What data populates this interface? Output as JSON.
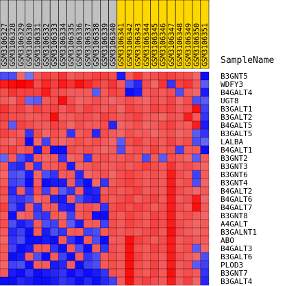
{
  "chart_data": {
    "type": "heatmap",
    "column_axis_title": "SampleName",
    "columns": [
      {
        "name": "GSM3106327",
        "group": "control"
      },
      {
        "name": "GSM3106328",
        "group": "control"
      },
      {
        "name": "GSM3106329",
        "group": "control"
      },
      {
        "name": "GSM3106330",
        "group": "control"
      },
      {
        "name": "GSM3106331",
        "group": "control"
      },
      {
        "name": "GSM3106332",
        "group": "control"
      },
      {
        "name": "GSM3106333",
        "group": "control"
      },
      {
        "name": "GSM3106334",
        "group": "control"
      },
      {
        "name": "GSM3106335",
        "group": "control"
      },
      {
        "name": "GSM3106336",
        "group": "control"
      },
      {
        "name": "GSM3106337",
        "group": "control"
      },
      {
        "name": "GSM3106338",
        "group": "control"
      },
      {
        "name": "GSM3106339",
        "group": "control"
      },
      {
        "name": "GSM3106340",
        "group": "control"
      },
      {
        "name": "GSM3106341",
        "group": "treated"
      },
      {
        "name": "GSM3106342",
        "group": "treated"
      },
      {
        "name": "GSM3106343",
        "group": "treated"
      },
      {
        "name": "GSM3106344",
        "group": "treated"
      },
      {
        "name": "GSM3106345",
        "group": "treated"
      },
      {
        "name": "GSM3106346",
        "group": "treated"
      },
      {
        "name": "GSM3106347",
        "group": "treated"
      },
      {
        "name": "GSM3106348",
        "group": "treated"
      },
      {
        "name": "GSM3106349",
        "group": "treated"
      },
      {
        "name": "GSM3106350",
        "group": "treated"
      },
      {
        "name": "GSM3106351",
        "group": "treated"
      }
    ],
    "rows": [
      "B3GNT5",
      "WDFY3",
      "B4GALT4",
      "UGT8",
      "B3GALT1",
      "B3GALT2",
      "B4GALT5",
      "B3GALT5",
      "LALBA",
      "B4GALT1",
      "B3GNT2",
      "B3GNT3",
      "B3GNT6",
      "B3GNT4",
      "B4GALT2",
      "B4GALT6",
      "B4GALT7",
      "B3GNT8",
      "A4GALT",
      "B3GALNT1",
      "ABO",
      "B4GALT3",
      "B3GALT6",
      "PLOD3",
      "B3GNT7",
      "B3GALT4"
    ],
    "values": [
      [
        -0.4,
        -0.4,
        0.2,
        -0.1,
        0.3,
        0.5,
        0.4,
        0.6,
        0.3,
        0.4,
        0.4,
        0.5,
        0.5,
        0.4,
        -0.8,
        0.3,
        0.6,
        0.3,
        0.4,
        0.5,
        0.5,
        0.4,
        0.4,
        0.2,
        -0.9
      ],
      [
        0.8,
        0.9,
        1.0,
        0.9,
        0.4,
        0.7,
        0.5,
        0.8,
        0.6,
        0.9,
        0.7,
        0.5,
        0.4,
        0.6,
        0.3,
        -0.4,
        -0.7,
        0.4,
        0.2,
        0.6,
        -0.6,
        0.5,
        0.6,
        0.3,
        -0.3
      ],
      [
        0.4,
        0.6,
        0.5,
        0.5,
        0.5,
        0.8,
        0.4,
        0.4,
        0.3,
        0.3,
        0.3,
        -0.3,
        0.3,
        0.5,
        0.4,
        -0.9,
        -0.8,
        0.3,
        0.4,
        0.3,
        0.4,
        -0.4,
        0.3,
        0.2,
        -0.8
      ],
      [
        0.3,
        0.2,
        0.5,
        -0.2,
        -0.3,
        0.3,
        0.4,
        0.9,
        0.4,
        0.2,
        0.3,
        0.4,
        0.3,
        0.2,
        0.3,
        0.4,
        0.3,
        0.2,
        0.4,
        0.3,
        0.5,
        0.2,
        0.4,
        -0.4,
        -0.3
      ],
      [
        0.6,
        0.4,
        0.5,
        0.3,
        0.5,
        0.4,
        0.5,
        0.3,
        0.5,
        0.3,
        0.5,
        0.4,
        0.3,
        0.4,
        0.2,
        0.5,
        0.4,
        0.3,
        0.5,
        0.4,
        0.5,
        0.3,
        0.4,
        0.9,
        -0.5
      ],
      [
        0.5,
        0.4,
        0.4,
        0.3,
        0.3,
        0.4,
        0.9,
        0.3,
        0.3,
        0.4,
        0.4,
        0.3,
        0.5,
        0.4,
        0.3,
        0.4,
        0.5,
        0.3,
        0.3,
        0.2,
        0.4,
        0.3,
        0.8,
        0.3,
        -0.6
      ],
      [
        0.4,
        -0.3,
        0.5,
        0.4,
        0.3,
        0.3,
        0.5,
        0.4,
        0.2,
        0.4,
        0.3,
        0.3,
        0.4,
        -0.7,
        0.2,
        0.3,
        0.4,
        0.2,
        0.3,
        0.4,
        0.5,
        0.3,
        0.3,
        0.8,
        -0.8
      ],
      [
        0.5,
        0.4,
        0.3,
        -0.6,
        0.4,
        0.2,
        0.4,
        0.3,
        -0.6,
        0.3,
        0.4,
        -0.7,
        0.4,
        0.3,
        0.2,
        0.4,
        0.3,
        0.3,
        0.2,
        0.3,
        0.4,
        0.2,
        0.3,
        -0.3,
        -0.6
      ],
      [
        0.3,
        0.2,
        0.4,
        -0.9,
        0.2,
        -0.5,
        0.3,
        0.2,
        0.3,
        0.4,
        0.3,
        0.4,
        0.3,
        0.2,
        -0.3,
        0.4,
        0.5,
        0.3,
        0.4,
        0.3,
        0.5,
        0.3,
        0.4,
        -0.4,
        -0.2
      ],
      [
        0.4,
        0.5,
        0.3,
        0.4,
        -0.8,
        0.4,
        -0.9,
        -0.9,
        0.4,
        0.3,
        0.4,
        0.3,
        0.2,
        0.3,
        -0.4,
        0.3,
        0.4,
        0.3,
        0.5,
        0.3,
        0.4,
        -0.5,
        0.3,
        0.3,
        -0.9
      ],
      [
        -0.2,
        0.3,
        -0.4,
        -0.7,
        0.3,
        0.2,
        0.3,
        -0.6,
        0.2,
        0.3,
        -0.6,
        0.3,
        0.4,
        0.3,
        0.3,
        0.4,
        0.3,
        -0.4,
        0.3,
        -0.3,
        0.4,
        0.3,
        0.2,
        -0.3,
        0.3
      ],
      [
        0.3,
        -0.6,
        -0.7,
        0.3,
        -0.6,
        0.3,
        0.3,
        0.4,
        -0.8,
        0.2,
        0.3,
        0.4,
        0.3,
        0.3,
        0.4,
        0.3,
        0.4,
        0.5,
        0.4,
        0.3,
        0.6,
        0.3,
        0.4,
        0.3,
        0.2
      ],
      [
        0.2,
        -0.4,
        -0.3,
        -0.8,
        0.2,
        -0.4,
        -0.6,
        0.3,
        0.3,
        -0.7,
        0.2,
        0.3,
        0.4,
        0.2,
        0.4,
        0.5,
        0.4,
        0.3,
        0.4,
        0.3,
        0.8,
        0.4,
        0.3,
        -0.5,
        0.3
      ],
      [
        0.3,
        -0.5,
        -0.4,
        -0.9,
        0.3,
        -0.9,
        -0.8,
        -0.8,
        0.3,
        -0.6,
        -0.9,
        0.2,
        -0.6,
        0.3,
        0.4,
        0.5,
        0.4,
        0.3,
        0.4,
        0.3,
        0.8,
        0.3,
        0.4,
        -0.4,
        0.2
      ],
      [
        0.4,
        -0.7,
        0.3,
        -0.6,
        0.4,
        -0.5,
        0.3,
        -0.3,
        -0.6,
        0.3,
        -0.8,
        -0.7,
        0.3,
        0.4,
        0.3,
        0.4,
        0.5,
        0.3,
        0.4,
        0.3,
        0.8,
        0.4,
        0.3,
        0.2,
        0.3
      ],
      [
        0.3,
        -0.5,
        -0.6,
        -0.4,
        0.2,
        0.3,
        -0.7,
        -0.8,
        0.3,
        -0.4,
        -0.7,
        -0.8,
        0.4,
        0.3,
        0.4,
        0.5,
        0.3,
        0.4,
        0.5,
        0.3,
        0.8,
        0.3,
        0.4,
        0.8,
        0.2
      ],
      [
        0.5,
        -0.4,
        -0.8,
        0.3,
        -0.6,
        0.3,
        0.3,
        -0.7,
        -0.8,
        0.3,
        0.4,
        0.3,
        -0.6,
        0.4,
        0.5,
        0.4,
        0.5,
        0.4,
        0.3,
        0.4,
        0.8,
        0.4,
        0.3,
        0.9,
        0.3
      ],
      [
        0.3,
        -0.9,
        0.2,
        0.3,
        -0.5,
        -0.6,
        0.3,
        0.2,
        -0.5,
        0.3,
        0.4,
        -0.9,
        -0.9,
        0.4,
        0.3,
        0.5,
        0.4,
        0.3,
        0.5,
        0.4,
        0.8,
        0.3,
        0.4,
        0.3,
        0.2
      ],
      [
        0.4,
        -0.4,
        -0.8,
        -0.6,
        0.3,
        -0.4,
        -0.5,
        0.3,
        -0.3,
        -0.8,
        0.3,
        0.3,
        -0.5,
        0.4,
        0.3,
        0.5,
        0.4,
        0.3,
        0.5,
        0.4,
        0.8,
        0.4,
        0.3,
        0.2,
        0.3
      ],
      [
        0.3,
        -0.7,
        -0.5,
        -0.9,
        0.3,
        -0.8,
        -0.4,
        -0.6,
        0.3,
        0.3,
        -0.5,
        -0.4,
        0.3,
        0.4,
        0.3,
        0.4,
        0.3,
        0.4,
        0.5,
        0.3,
        0.9,
        0.4,
        0.3,
        0.2,
        0.3
      ],
      [
        0.2,
        -0.6,
        -0.4,
        -0.9,
        -0.9,
        -0.8,
        -0.9,
        0.3,
        -0.6,
        -0.9,
        0.3,
        -0.4,
        -0.9,
        0.3,
        0.3,
        0.9,
        0.5,
        0.4,
        0.3,
        0.4,
        0.8,
        0.3,
        0.4,
        0.3,
        0.3
      ],
      [
        0.3,
        -0.5,
        -0.9,
        -0.8,
        0.3,
        0.3,
        -0.6,
        -0.9,
        0.3,
        -0.4,
        -0.9,
        0.3,
        -0.6,
        0.4,
        0.3,
        0.9,
        0.4,
        0.3,
        0.5,
        0.4,
        0.8,
        0.3,
        0.4,
        -0.3,
        0.2
      ],
      [
        0.3,
        -0.9,
        -0.8,
        0.3,
        -0.4,
        -0.9,
        0.3,
        -0.5,
        -0.9,
        0.3,
        -0.6,
        -0.4,
        0.3,
        0.4,
        0.3,
        0.9,
        0.5,
        0.3,
        0.4,
        0.3,
        0.8,
        0.4,
        0.3,
        0.2,
        -0.4
      ],
      [
        0.2,
        -0.5,
        -0.4,
        -0.9,
        0.3,
        0.3,
        -0.8,
        -0.7,
        0.3,
        -0.9,
        -0.5,
        -0.4,
        0.3,
        0.4,
        0.3,
        0.9,
        0.4,
        0.3,
        0.5,
        0.3,
        0.8,
        0.3,
        0.4,
        -0.3,
        -0.5
      ],
      [
        0.3,
        -0.8,
        -0.9,
        -0.6,
        -0.9,
        -0.8,
        -0.7,
        -0.6,
        -0.9,
        -0.7,
        -0.9,
        -0.8,
        -0.6,
        0.4,
        0.3,
        0.9,
        0.4,
        0.3,
        0.5,
        0.3,
        0.9,
        0.3,
        0.4,
        0.3,
        -0.6
      ],
      [
        -0.9,
        -0.9,
        -0.7,
        -0.8,
        -0.9,
        -0.9,
        -0.8,
        -0.6,
        -0.7,
        -0.9,
        -0.7,
        -0.9,
        -0.7,
        -0.5,
        0.3,
        0.9,
        0.4,
        0.5,
        0.4,
        0.3,
        0.8,
        0.3,
        0.5,
        0.2,
        -0.7
      ]
    ],
    "colors": {
      "high": "#ff0000",
      "low": "#0000ff",
      "mid_high": "#f08080",
      "mid_low": "#8080f0",
      "group_control": "#c0c0c0",
      "group_treated": "#ffd700"
    },
    "value_range": [
      -1,
      1
    ],
    "legend": "none"
  }
}
